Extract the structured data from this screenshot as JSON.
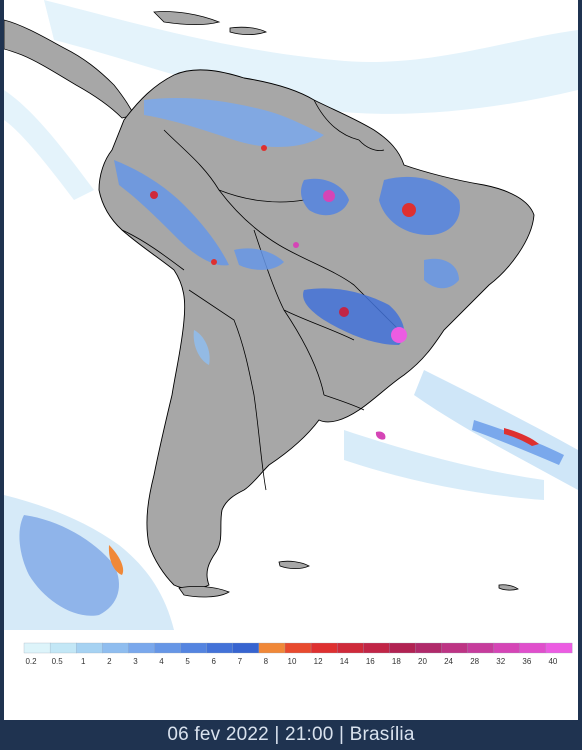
{
  "map": {
    "colors": {
      "ocean": "#ffffff",
      "land": "#a7a7a7",
      "border": "#000000"
    }
  },
  "legend": {
    "scale": [
      {
        "label": "0.2",
        "color": "#ddf4fa"
      },
      {
        "label": "0.5",
        "color": "#c3e7f6"
      },
      {
        "label": "1",
        "color": "#a6d2f2"
      },
      {
        "label": "2",
        "color": "#8fbdef"
      },
      {
        "label": "3",
        "color": "#7aa8ec"
      },
      {
        "label": "4",
        "color": "#6696e6"
      },
      {
        "label": "5",
        "color": "#5484e0"
      },
      {
        "label": "6",
        "color": "#4372d8"
      },
      {
        "label": "7",
        "color": "#3764d0"
      },
      {
        "label": "8",
        "color": "#f08838"
      },
      {
        "label": "10",
        "color": "#e84a2e"
      },
      {
        "label": "12",
        "color": "#de3030"
      },
      {
        "label": "14",
        "color": "#cf2a3a"
      },
      {
        "label": "16",
        "color": "#c12546"
      },
      {
        "label": "18",
        "color": "#b12252"
      },
      {
        "label": "20",
        "color": "#b02a6a"
      },
      {
        "label": "24",
        "color": "#bd3484"
      },
      {
        "label": "28",
        "color": "#c63c9c"
      },
      {
        "label": "32",
        "color": "#d545b6"
      },
      {
        "label": "36",
        "color": "#e04fcc"
      },
      {
        "label": "40",
        "color": "#ec5ce2"
      }
    ]
  },
  "footer": {
    "text": "06 fev 2022 | 21:00 | Brasília"
  }
}
